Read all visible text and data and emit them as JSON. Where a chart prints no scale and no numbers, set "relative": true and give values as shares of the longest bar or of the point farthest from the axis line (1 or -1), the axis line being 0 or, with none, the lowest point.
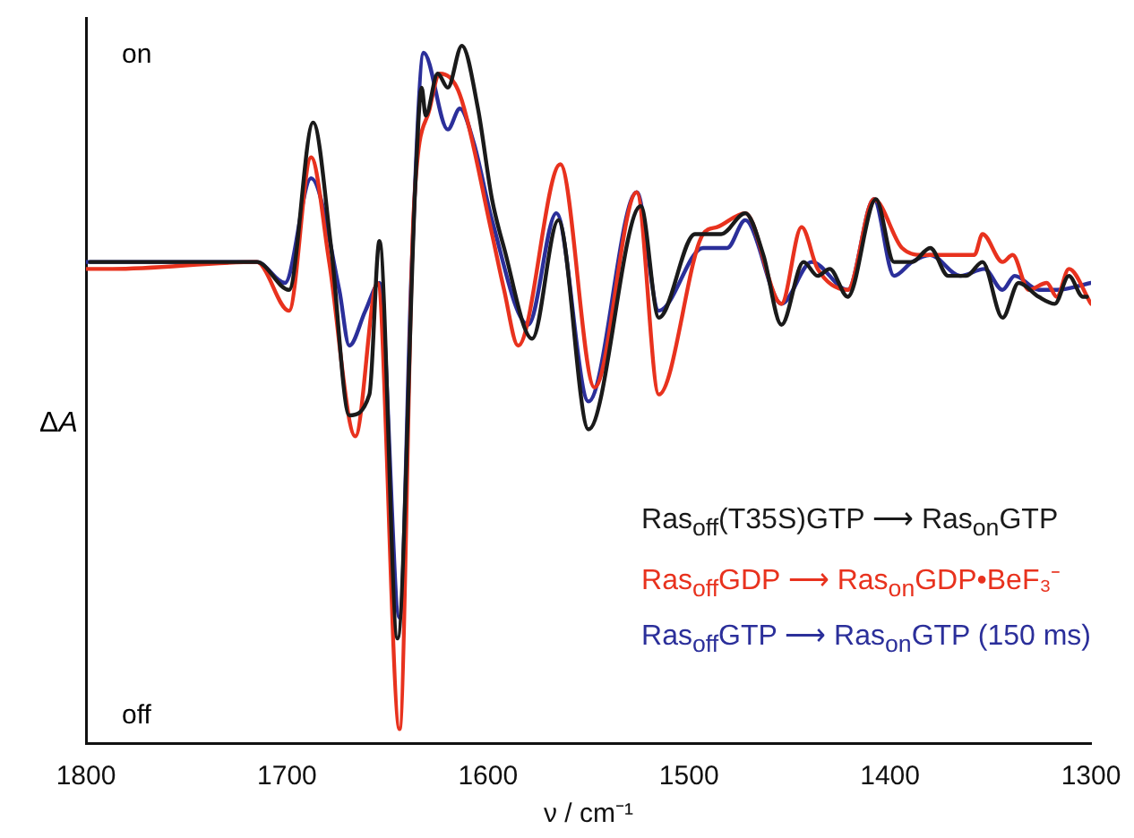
{
  "chart_data": {
    "type": "line",
    "relative": true,
    "xlabel": "ν / cm⁻¹",
    "ylabel": "ΔA",
    "xlim": [
      1800,
      1300
    ],
    "xticks": [
      1800,
      1700,
      1600,
      1500,
      1400,
      1300
    ],
    "grid": false,
    "legend": "bottom right",
    "marker": "none",
    "line_style": "solid",
    "annotations": [
      "on",
      "off"
    ],
    "series": [
      {
        "name": "Ras$_{off}$(T35S)GTP ⟶ Ras$_{on}$GTP",
        "color": "#1a1a1a",
        "x": [
          1798,
          1715,
          1699,
          1687,
          1678,
          1669,
          1659,
          1654,
          1645,
          1636,
          1633,
          1631,
          1625,
          1620,
          1613,
          1605,
          1598,
          1592,
          1578,
          1565,
          1550,
          1524,
          1515,
          1497,
          1484,
          1472,
          1463,
          1454,
          1443,
          1436,
          1430,
          1421,
          1407,
          1398,
          1389,
          1380,
          1371,
          1362,
          1354,
          1344,
          1336,
          1326,
          1318,
          1311,
          1304,
          1302
        ],
        "values": [
          0.69,
          0.69,
          0.65,
          0.89,
          0.71,
          0.47,
          0.5,
          0.72,
          0.15,
          0.81,
          0.94,
          0.9,
          0.96,
          0.94,
          1.0,
          0.91,
          0.78,
          0.71,
          0.58,
          0.75,
          0.45,
          0.77,
          0.61,
          0.73,
          0.73,
          0.76,
          0.7,
          0.6,
          0.69,
          0.67,
          0.68,
          0.64,
          0.78,
          0.69,
          0.69,
          0.71,
          0.67,
          0.67,
          0.69,
          0.61,
          0.66,
          0.64,
          0.63,
          0.67,
          0.64,
          0.64
        ]
      },
      {
        "name": "Ras$_{off}$GDP ⟶ Ras$_{on}$GDP•BeF₃⁻",
        "color": "#e8321e",
        "x": [
          1800,
          1787,
          1715,
          1699,
          1688,
          1679,
          1666,
          1655,
          1644,
          1637,
          1629,
          1624,
          1614,
          1598,
          1592,
          1585,
          1564,
          1547,
          1526,
          1515,
          1493,
          1486,
          1472,
          1454,
          1444,
          1436,
          1421,
          1408,
          1394,
          1383,
          1358,
          1354,
          1344,
          1339,
          1331,
          1322,
          1317,
          1311,
          1300
        ],
        "values": [
          0.68,
          0.68,
          0.69,
          0.62,
          0.84,
          0.69,
          0.44,
          0.66,
          0.02,
          0.76,
          0.91,
          0.96,
          0.93,
          0.73,
          0.65,
          0.57,
          0.83,
          0.51,
          0.79,
          0.5,
          0.73,
          0.74,
          0.76,
          0.63,
          0.74,
          0.68,
          0.65,
          0.78,
          0.71,
          0.7,
          0.7,
          0.73,
          0.69,
          0.7,
          0.65,
          0.66,
          0.64,
          0.68,
          0.63
        ]
      },
      {
        "name": "Ras$_{off}$GTP ⟶ Ras$_{on}$GTP (150 ms)",
        "color": "#2b2f9a",
        "x": [
          1800,
          1715,
          1701,
          1688,
          1674,
          1669,
          1661,
          1654,
          1644,
          1638,
          1632,
          1620,
          1614,
          1607,
          1598,
          1580,
          1566,
          1550,
          1526,
          1515,
          1493,
          1481,
          1472,
          1454,
          1439,
          1421,
          1408,
          1398,
          1389,
          1380,
          1365,
          1353,
          1344,
          1338,
          1326,
          1317,
          1300
        ],
        "values": [
          0.69,
          0.69,
          0.66,
          0.81,
          0.65,
          0.57,
          0.62,
          0.66,
          0.18,
          0.68,
          0.99,
          0.88,
          0.91,
          0.86,
          0.75,
          0.6,
          0.76,
          0.49,
          0.79,
          0.62,
          0.71,
          0.71,
          0.75,
          0.63,
          0.69,
          0.65,
          0.78,
          0.67,
          0.69,
          0.7,
          0.67,
          0.68,
          0.65,
          0.67,
          0.65,
          0.65,
          0.66
        ]
      }
    ]
  }
}
